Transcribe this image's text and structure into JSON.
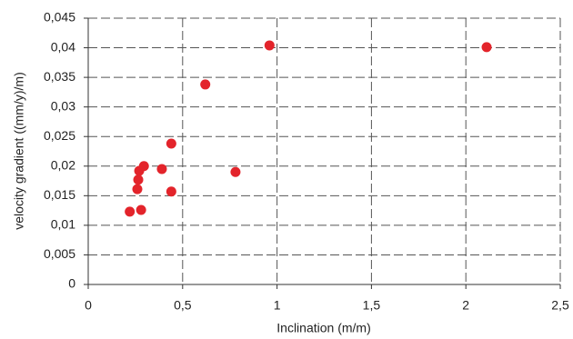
{
  "chart_data": {
    "type": "scatter",
    "x_label": "Inclination (m/m)",
    "y_label": "velocity gradient  ((mm/y)/m)",
    "color": "#e3242b",
    "grid": true,
    "x": [
      0.22,
      0.28,
      0.26,
      0.265,
      0.27,
      0.295,
      0.39,
      0.44,
      0.44,
      0.62,
      0.78,
      0.96,
      2.11
    ],
    "values": [
      0.0123,
      0.0126,
      0.0161,
      0.0177,
      0.0192,
      0.02,
      0.0195,
      0.0238,
      0.0157,
      0.0338,
      0.019,
      0.0404,
      0.0401
    ],
    "xlim": [
      0,
      2.5
    ],
    "xticks": [
      0,
      {
        "value": 0.5,
        "label": "0,5"
      },
      1,
      {
        "value": 1.5,
        "label": "1,5"
      },
      2,
      {
        "value": 2.5,
        "label": "2,5"
      }
    ],
    "ylim": [
      0,
      0.045
    ],
    "yticks": [
      0,
      {
        "value": 0.005,
        "label": "0,005"
      },
      {
        "value": 0.01,
        "label": "0,01"
      },
      {
        "value": 0.015,
        "label": "0,015"
      },
      {
        "value": 0.02,
        "label": "0,02"
      },
      {
        "value": 0.025,
        "label": "0,025"
      },
      {
        "value": 0.03,
        "label": "0,03"
      },
      {
        "value": 0.035,
        "label": "0,035"
      },
      {
        "value": 0.04,
        "label": "0,04"
      },
      {
        "value": 0.045,
        "label": "0,045"
      }
    ]
  }
}
